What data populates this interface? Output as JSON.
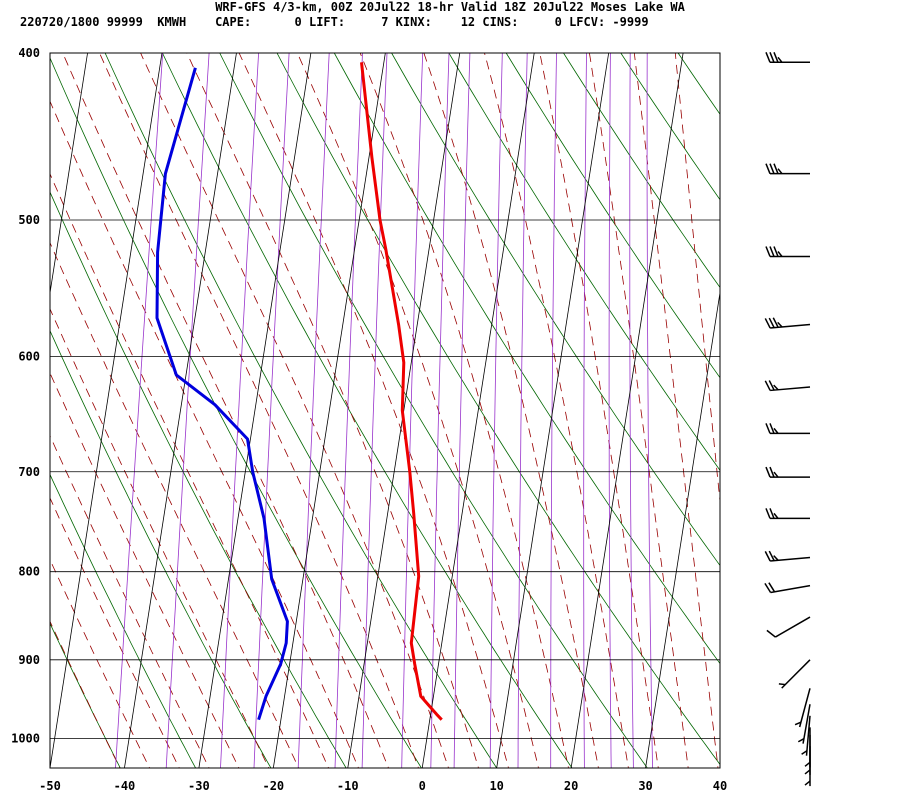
{
  "header": {
    "line1": "WRF-GFS 4/3-km, 00Z 20Jul22 18-hr Valid 18Z 20Jul22 Moses Lake WA",
    "line2": "220720/1800 99999  KMWH    CAPE:      0 LIFT:     7 KINX:    12 CINS:     0 LFCV: -9999"
  },
  "chart_data": {
    "type": "skew-t sounding",
    "title": "WRF-GFS 4/3-km, 00Z 20Jul22 18-hr Valid 18Z 20Jul22 Moses Lake WA",
    "xlabel": "",
    "ylabel": "",
    "x_ticks": [
      "-50",
      "-40",
      "-30",
      "-20",
      "-10",
      "0",
      "10",
      "20",
      "30",
      "40"
    ],
    "y_ticks": [
      "400",
      "500",
      "600",
      "700",
      "800",
      "900",
      "1000"
    ],
    "xlim": [
      -50,
      40
    ],
    "pressure_range_hPa": [
      400,
      1040
    ],
    "y_scale": "log-pressure",
    "grid": true,
    "colors": {
      "temperature": "#ee0000",
      "dewpoint": "#0000dd",
      "dry_adiabats": "#006600",
      "moist_adiabats": "#990000",
      "mixing_ratio": "#9933cc",
      "grid": "#000000"
    },
    "series": [
      {
        "name": "Temperature",
        "pressure": [
          405,
          460,
          500,
          520,
          575,
          605,
          645,
          700,
          740,
          805,
          880,
          905,
          945,
          968,
          975
        ],
        "values": [
          -23.0,
          -19.6,
          -17.2,
          -15.8,
          -12.5,
          -11.0,
          -10.2,
          -7.9,
          -6.5,
          -4.5,
          -4.1,
          -3.2,
          -1.7,
          0.8,
          1.6
        ]
      },
      {
        "name": "Dewpoint",
        "pressure": [
          408,
          470,
          522,
          570,
          615,
          640,
          670,
          700,
          745,
          808,
          855,
          880,
          905,
          945,
          975
        ],
        "values": [
          -45.2,
          -47.0,
          -46.4,
          -45.1,
          -41.3,
          -35.5,
          -30.4,
          -29.0,
          -26.5,
          -24.2,
          -21.2,
          -20.9,
          -21.2,
          -22.5,
          -23.0
        ]
      }
    ],
    "wind_barbs": [
      {
        "pressure": 405,
        "direction_deg": 270,
        "speed_kt": 35
      },
      {
        "pressure": 470,
        "direction_deg": 270,
        "speed_kt": 35
      },
      {
        "pressure": 525,
        "direction_deg": 270,
        "speed_kt": 35
      },
      {
        "pressure": 575,
        "direction_deg": 265,
        "speed_kt": 35
      },
      {
        "pressure": 625,
        "direction_deg": 265,
        "speed_kt": 25
      },
      {
        "pressure": 665,
        "direction_deg": 270,
        "speed_kt": 25
      },
      {
        "pressure": 705,
        "direction_deg": 270,
        "speed_kt": 25
      },
      {
        "pressure": 745,
        "direction_deg": 270,
        "speed_kt": 25
      },
      {
        "pressure": 785,
        "direction_deg": 265,
        "speed_kt": 25
      },
      {
        "pressure": 815,
        "direction_deg": 260,
        "speed_kt": 20
      },
      {
        "pressure": 850,
        "direction_deg": 240,
        "speed_kt": 10
      },
      {
        "pressure": 900,
        "direction_deg": 225,
        "speed_kt": 5
      },
      {
        "pressure": 935,
        "direction_deg": 195,
        "speed_kt": 5
      },
      {
        "pressure": 955,
        "direction_deg": 190,
        "speed_kt": 5
      },
      {
        "pressure": 970,
        "direction_deg": 185,
        "speed_kt": 5
      },
      {
        "pressure": 985,
        "direction_deg": 180,
        "speed_kt": 5
      },
      {
        "pressure": 995,
        "direction_deg": 180,
        "speed_kt": 5
      },
      {
        "pressure": 1010,
        "direction_deg": 180,
        "speed_kt": 5
      }
    ]
  }
}
